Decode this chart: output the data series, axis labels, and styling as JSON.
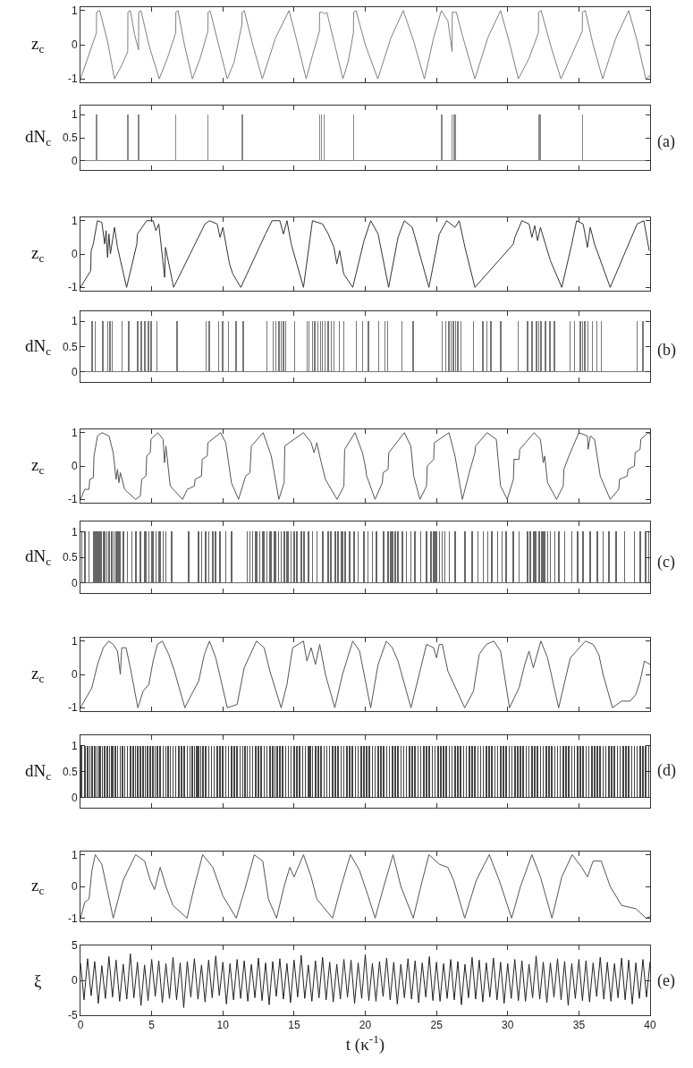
{
  "chart_data": [
    {
      "type": "line",
      "ylabel": "z$_{c}$",
      "annotations": [
        "(a)"
      ],
      "color": "#808080",
      "xlim": [
        0,
        40
      ],
      "xticks": [
        0,
        5,
        10,
        15,
        20,
        25,
        30,
        35,
        40
      ],
      "ylim": [
        -1.1,
        1.1
      ],
      "yticks": [
        -1,
        0,
        1
      ],
      "tick_labels": "y",
      "x": [
        0,
        0.5,
        1.12,
        1.13,
        1.35,
        1.9,
        2.39,
        2.9,
        3.32,
        3.33,
        3.5,
        3.8,
        4.08,
        4.09,
        4.25,
        4.8,
        5.53,
        6.1,
        6.69,
        6.7,
        6.85,
        7.3,
        7.86,
        8.4,
        8.95,
        8.96,
        9.1,
        9.7,
        10.31,
        10.8,
        11.34,
        11.35,
        11.5,
        12.1,
        12.77,
        13.7,
        14.65,
        15.2,
        15.85,
        16.3,
        16.78,
        16.79,
        17.0,
        17.11,
        17.3,
        17.8,
        18.43,
        18.8,
        19.17,
        19.18,
        19.35,
        20.0,
        20.88,
        21.8,
        22.67,
        23.4,
        24.15,
        24.8,
        25.34,
        25.8,
        26.1,
        26.11,
        26.4,
        26.8,
        27.7,
        28.6,
        29.5,
        30.1,
        30.75,
        31.5,
        32.16,
        32.17,
        32.35,
        33.0,
        33.74,
        34.5,
        35.24,
        35.25,
        35.45,
        36.0,
        36.67,
        37.6,
        38.5,
        39.1,
        39.7,
        40
      ],
      "values": [
        -1,
        -0.4,
        0.35,
        0.95,
        1,
        0.1,
        -1,
        -0.6,
        -0.2,
        0.95,
        1,
        0.3,
        -0.15,
        0.95,
        1,
        0,
        -1,
        -0.4,
        0.35,
        0.95,
        1,
        0,
        -1,
        -0.4,
        0.4,
        0.95,
        1,
        0,
        -1,
        -0.5,
        0.6,
        0.95,
        1,
        0,
        -1,
        0.2,
        1,
        0.1,
        -1,
        -0.3,
        0.4,
        0.95,
        0.95,
        0.9,
        0.95,
        0.1,
        -1,
        -0.5,
        0.35,
        0.95,
        1,
        0,
        -1,
        0.2,
        1,
        0.1,
        -1,
        0.2,
        1,
        0.7,
        -0.2,
        0.95,
        0.95,
        0.3,
        -1,
        0.2,
        1,
        0.1,
        -1,
        -0.4,
        0.35,
        0.95,
        1,
        0,
        -1,
        -0.3,
        0.4,
        0.95,
        1,
        0,
        -1,
        0.2,
        1,
        0.1,
        -1,
        -0.9
      ]
    },
    {
      "type": "bar",
      "ylabel": "dN$_{c}$",
      "color": "#888888",
      "xlim": [
        0,
        40
      ],
      "xticks": [
        0,
        5,
        10,
        15,
        20,
        25,
        30,
        35,
        40
      ],
      "ylim": [
        -0.2,
        1.2
      ],
      "yticks": [
        0,
        0.5,
        1
      ],
      "tick_labels": "y",
      "x": [
        1.13,
        3.33,
        4.09,
        6.7,
        8.96,
        11.35,
        16.79,
        16.92,
        17.11,
        19.18,
        25.35,
        26.1,
        26.23,
        26.35,
        32.17,
        32.26,
        35.25
      ],
      "values": [
        1,
        1,
        1,
        1,
        1,
        1,
        1,
        1,
        1,
        1,
        1,
        1,
        1,
        1,
        1,
        1,
        1
      ]
    },
    {
      "type": "line",
      "ylabel": "z$_{c}$",
      "annotations": [
        "(b)"
      ],
      "color": "#333333",
      "xlim": [
        0,
        40
      ],
      "xticks": [
        0,
        5,
        10,
        15,
        20,
        25,
        30,
        35,
        40
      ],
      "ylim": [
        -1.1,
        1.1
      ],
      "yticks": [
        -1,
        0,
        1
      ],
      "tick_labels": "y",
      "x": [
        0,
        0.72,
        0.75,
        0.9,
        1.19,
        1.5,
        1.7,
        1.8,
        1.9,
        2.0,
        2.1,
        2.39,
        2.6,
        3.24,
        3.96,
        4.0,
        4.65,
        5.1,
        5.3,
        5.5,
        5.91,
        5.97,
        6.54,
        8.74,
        9.06,
        9.6,
        9.8,
        10.0,
        10.47,
        10.7,
        11.26,
        12.99,
        13.46,
        14.0,
        14.25,
        14.5,
        14.8,
        15.66,
        16.29,
        17.0,
        17.4,
        17.8,
        18.0,
        18.2,
        18.49,
        19.12,
        19.91,
        20.38,
        20.9,
        21.64,
        22.3,
        22.74,
        23.3,
        24.47,
        25.2,
        25.72,
        26.3,
        26.6,
        27.0,
        27.7,
        30.4,
        30.5,
        31.0,
        31.5,
        31.7,
        31.9,
        32.1,
        32.3,
        33.0,
        33.8,
        34.5,
        34.84,
        35.3,
        35.6,
        35.8,
        36.1,
        37.2,
        39.09,
        39.56,
        39.94
      ],
      "values": [
        -1,
        -0.5,
        0.1,
        0.3,
        1,
        0.95,
        0.3,
        0.7,
        -0.1,
        0.6,
        0,
        0.8,
        0.2,
        -1,
        0.3,
        0.6,
        1,
        1,
        0.7,
        0.9,
        -0.7,
        0.2,
        -1,
        0.9,
        1,
        0.9,
        0.5,
        0.8,
        -0.3,
        -0.6,
        -1,
        0.6,
        1,
        1,
        0.6,
        1,
        0.3,
        -1,
        1,
        0.9,
        0.6,
        0.2,
        -0.3,
        0.1,
        -0.6,
        -1,
        0.4,
        1,
        0.6,
        -1,
        0.5,
        1,
        0.8,
        -1,
        0.6,
        1,
        0.8,
        1,
        0.2,
        -1,
        0.3,
        0.5,
        1,
        0.9,
        0.5,
        0.85,
        0.4,
        0.8,
        -0.2,
        -1,
        0.3,
        1,
        0.9,
        0.2,
        0.8,
        0.3,
        -1,
        0.9,
        1,
        0.1
      ]
    },
    {
      "type": "bar",
      "ylabel": "dN$_{c}$",
      "color": "#777777",
      "xlim": [
        0,
        40
      ],
      "xticks": [
        0,
        5,
        10,
        15,
        20,
        25,
        30,
        35,
        40
      ],
      "ylim": [
        -0.2,
        1.2
      ],
      "yticks": [
        0,
        0.5,
        1
      ],
      "tick_labels": "y",
      "x": [
        0.82,
        1.04,
        1.57,
        1.92,
        2.08,
        2.23,
        2.92,
        3.4,
        4.03,
        4.28,
        4.53,
        4.78,
        4.97,
        5.38,
        6.79,
        8.81,
        9.06,
        9.69,
        10.0,
        10.38,
        10.94,
        11.42,
        13.08,
        13.52,
        13.71,
        13.93,
        14.09,
        14.25,
        14.4,
        15.03,
        15.91,
        16.04,
        16.29,
        16.45,
        16.67,
        16.86,
        16.98,
        17.17,
        17.39,
        17.61,
        17.8,
        18.18,
        18.49,
        19.37,
        19.81,
        20.22,
        20.94,
        21.38,
        21.57,
        22.58,
        23.36,
        25.41,
        25.66,
        25.88,
        26.04,
        26.19,
        26.35,
        26.51,
        26.73,
        27.61,
        28.24,
        28.55,
        28.81,
        29.5,
        30.75,
        31.38,
        31.7,
        32.01,
        32.17,
        32.33,
        32.64,
        32.96,
        33.27,
        34.37,
        34.69,
        35.09,
        35.25,
        35.41,
        35.63,
        35.94,
        36.26,
        36.57,
        39.09,
        39.5
      ],
      "values": [
        1,
        1,
        1,
        1,
        1,
        1,
        1,
        1,
        1,
        1,
        1,
        1,
        1,
        1,
        1,
        1,
        1,
        1,
        1,
        1,
        1,
        1,
        1,
        1,
        1,
        1,
        1,
        1,
        1,
        1,
        1,
        1,
        1,
        1,
        1,
        1,
        1,
        1,
        1,
        1,
        1,
        1,
        1,
        1,
        1,
        1,
        1,
        1,
        1,
        1,
        1,
        1,
        1,
        1,
        1,
        1,
        1,
        1,
        1,
        1,
        1,
        1,
        1,
        1,
        1,
        1,
        1,
        1,
        1,
        1,
        1,
        1,
        1,
        1,
        1,
        1,
        1,
        1,
        1,
        1,
        1,
        1,
        1,
        1
      ]
    },
    {
      "type": "line",
      "ylabel": "z$_{c}$",
      "annotations": [
        "(c)"
      ],
      "color": "#555555",
      "xlim": [
        0,
        40
      ],
      "xticks": [
        0,
        5,
        10,
        15,
        20,
        25,
        30,
        35,
        40
      ],
      "ylim": [
        -1.1,
        1.1
      ],
      "yticks": [
        -1,
        0,
        1
      ],
      "tick_labels": "y",
      "x": [
        0,
        0.3,
        0.6,
        0.65,
        0.9,
        0.95,
        1.2,
        1.51,
        2.0,
        2.3,
        2.5,
        2.6,
        2.7,
        2.8,
        3.1,
        3.87,
        4.2,
        4.3,
        4.6,
        4.65,
        4.9,
        4.95,
        5.44,
        5.8,
        5.9,
        6.0,
        6.3,
        7.17,
        7.5,
        8.0,
        8.05,
        8.5,
        8.55,
        8.9,
        8.95,
        9.84,
        10.2,
        10.6,
        11.1,
        11.6,
        11.9,
        12.0,
        12.83,
        13.4,
        13.93,
        14.3,
        14.35,
        15.0,
        15.66,
        16.2,
        16.4,
        16.6,
        16.8,
        17.2,
        18.02,
        18.5,
        18.55,
        19.28,
        19.8,
        20.0,
        20.1,
        20.69,
        21.2,
        21.25,
        21.6,
        21.65,
        22.74,
        23.2,
        23.4,
        23.84,
        24.3,
        24.35,
        24.8,
        24.85,
        25.88,
        26.3,
        26.82,
        27.3,
        27.7,
        27.75,
        28.55,
        29.2,
        29.5,
        29.97,
        30.4,
        30.45,
        30.8,
        30.85,
        31.86,
        32.3,
        32.5,
        32.6,
        32.8,
        33.43,
        33.9,
        33.95,
        34.3,
        35.0,
        35.6,
        35.65,
        35.8,
        36.1,
        36.5,
        37.2,
        37.8,
        37.85,
        38.4,
        38.45,
        38.9,
        38.95,
        39.3,
        39.35,
        39.87,
        40
      ],
      "values": [
        -1,
        -0.7,
        -0.7,
        -0.4,
        -0.35,
        0.3,
        0.9,
        1,
        0.9,
        0.4,
        -0.4,
        -0.1,
        -0.5,
        -0.2,
        -0.7,
        -1,
        -0.9,
        -0.4,
        -0.3,
        0.3,
        0.4,
        0.8,
        1,
        0.8,
        0.1,
        0.6,
        -0.6,
        -1,
        -0.7,
        -0.6,
        -0.4,
        -0.3,
        0.2,
        0.3,
        0.7,
        1,
        0.7,
        -0.5,
        -1,
        -0.3,
        -0.2,
        0.6,
        1,
        0.3,
        -1,
        -0.5,
        0.6,
        0.8,
        1,
        0.7,
        0.4,
        0.7,
        0.3,
        -0.4,
        -1,
        -0.6,
        0.5,
        1,
        0.4,
        0,
        -0.3,
        -1,
        -0.5,
        -0.2,
        -0.1,
        0.4,
        1,
        0.6,
        -0.3,
        -1,
        -0.6,
        0,
        0.2,
        0.7,
        1,
        0.3,
        -1,
        -0.2,
        0.4,
        0.6,
        1,
        0.8,
        -0.6,
        -1,
        -0.4,
        0.2,
        0.2,
        0.5,
        1,
        0.8,
        0.1,
        0.3,
        -0.5,
        -1,
        -0.6,
        -0.1,
        0.3,
        1,
        0.9,
        0.5,
        0.9,
        0.8,
        -0.3,
        -1,
        -0.7,
        -0.4,
        -0.3,
        -0.1,
        0,
        0.4,
        0.5,
        0.8,
        1,
        0.95
      ]
    },
    {
      "type": "bar",
      "ylabel": "dN$_{c}$",
      "color": "#666666",
      "xlim": [
        0,
        40
      ],
      "xticks": [
        0,
        5,
        10,
        15,
        20,
        25,
        30,
        35,
        40
      ],
      "ylim": [
        -0.2,
        1.2
      ],
      "yticks": [
        0,
        0.5,
        1
      ],
      "tick_labels": "y",
      "x": [
        0.1,
        0.3,
        0.6,
        0.9,
        1.0,
        1.1,
        1.2,
        1.3,
        1.45,
        1.6,
        1.7,
        1.85,
        2.0,
        2.2,
        2.35,
        2.5,
        2.6,
        2.7,
        2.8,
        3.0,
        3.3,
        3.6,
        3.9,
        4.2,
        4.5,
        4.6,
        4.8,
        5.0,
        5.1,
        5.3,
        5.5,
        5.6,
        5.8,
        6.0,
        6.4,
        7.6,
        8.3,
        8.5,
        8.8,
        9.0,
        9.3,
        9.5,
        9.8,
        10.2,
        10.6,
        11.7,
        11.9,
        12.1,
        12.3,
        12.4,
        12.6,
        12.8,
        12.9,
        13.1,
        13.3,
        13.4,
        13.6,
        13.7,
        13.9,
        14.1,
        14.3,
        14.5,
        14.6,
        14.8,
        15.0,
        15.2,
        15.5,
        15.7,
        16.0,
        16.3,
        16.6,
        17.0,
        17.4,
        17.6,
        17.9,
        18.1,
        18.3,
        18.4,
        18.6,
        18.9,
        19.2,
        19.5,
        19.9,
        20.2,
        20.5,
        20.8,
        21.3,
        21.6,
        21.8,
        21.9,
        22.1,
        22.3,
        22.6,
        22.9,
        23.2,
        23.5,
        23.9,
        24.3,
        24.6,
        24.8,
        24.9,
        25.0,
        25.2,
        25.4,
        25.6,
        25.9,
        26.3,
        27.0,
        27.5,
        27.9,
        28.3,
        28.6,
        28.9,
        29.3,
        29.6,
        29.9,
        30.4,
        30.8,
        31.4,
        31.6,
        31.8,
        31.9,
        32.0,
        32.2,
        32.4,
        32.5,
        32.6,
        32.8,
        33.0,
        33.3,
        33.6,
        34.0,
        34.5,
        34.9,
        35.3,
        35.8,
        36.3,
        36.7,
        37.1,
        37.6,
        38.2,
        38.9,
        39.3,
        39.7,
        39.9
      ],
      "values": [
        1,
        1,
        1,
        1,
        1,
        1,
        1,
        1,
        1,
        1,
        1,
        1,
        1,
        1,
        1,
        1,
        1,
        1,
        1,
        1,
        1,
        1,
        1,
        1,
        1,
        1,
        1,
        1,
        1,
        1,
        1,
        1,
        1,
        1,
        1,
        1,
        1,
        1,
        1,
        1,
        1,
        1,
        1,
        1,
        1,
        1,
        1,
        1,
        1,
        1,
        1,
        1,
        1,
        1,
        1,
        1,
        1,
        1,
        1,
        1,
        1,
        1,
        1,
        1,
        1,
        1,
        1,
        1,
        1,
        1,
        1,
        1,
        1,
        1,
        1,
        1,
        1,
        1,
        1,
        1,
        1,
        1,
        1,
        1,
        1,
        1,
        1,
        1,
        1,
        1,
        1,
        1,
        1,
        1,
        1,
        1,
        1,
        1,
        1,
        1,
        1,
        1,
        1,
        1,
        1,
        1,
        1,
        1,
        1,
        1,
        1,
        1,
        1,
        1,
        1,
        1,
        1,
        1,
        1,
        1,
        1,
        1,
        1,
        1,
        1,
        1,
        1,
        1,
        1,
        1,
        1,
        1,
        1,
        1,
        1,
        1,
        1,
        1,
        1,
        1,
        1,
        1,
        1,
        1,
        1
      ]
    },
    {
      "type": "line",
      "ylabel": "z$_{c}$",
      "annotations": [
        "(d)"
      ],
      "color": "#555555",
      "xlim": [
        0,
        40
      ],
      "xticks": [
        0,
        5,
        10,
        15,
        20,
        25,
        30,
        35,
        40
      ],
      "ylim": [
        -1.1,
        1.1
      ],
      "yticks": [
        -1,
        0,
        1
      ],
      "tick_labels": "y",
      "x": [
        0,
        0.4,
        0.8,
        1.2,
        1.6,
        1.98,
        2.3,
        2.6,
        2.8,
        2.9,
        3.2,
        3.5,
        4.03,
        4.4,
        4.8,
        5.1,
        5.4,
        5.75,
        6.2,
        6.6,
        7.33,
        7.8,
        8.3,
        8.7,
        9.06,
        9.5,
        10.31,
        11.0,
        11.5,
        12.36,
        12.9,
        13.3,
        14.09,
        14.5,
        14.9,
        15.66,
        15.9,
        16.2,
        16.5,
        16.8,
        17.2,
        17.86,
        18.4,
        19.12,
        19.6,
        20.38,
        20.9,
        21.48,
        21.9,
        22.3,
        23.21,
        23.9,
        24.3,
        24.8,
        25.0,
        25.2,
        25.41,
        25.8,
        26.98,
        27.6,
        28.0,
        28.5,
        29.03,
        29.5,
        30.13,
        30.8,
        31.2,
        31.5,
        31.8,
        32.33,
        32.8,
        33.58,
        34.4,
        35.47,
        36.0,
        36.4,
        36.7,
        37.36,
        38.0,
        38.6,
        39.0,
        39.3,
        39.6,
        40
      ],
      "values": [
        -1,
        -0.7,
        -0.4,
        0.3,
        0.8,
        1,
        0.9,
        0.7,
        0,
        0.8,
        0.8,
        0.2,
        -1,
        -0.5,
        -0.3,
        0.4,
        0.9,
        1,
        0.6,
        0.1,
        -1,
        -0.6,
        -0.2,
        0.6,
        1,
        0.5,
        -1,
        -0.9,
        0.2,
        1,
        0.8,
        0.1,
        -1,
        -0.3,
        0.8,
        1,
        0.4,
        0.8,
        0.3,
        0.9,
        0,
        -1,
        0,
        1,
        0.7,
        -1,
        0.3,
        1,
        0.8,
        0.4,
        -1,
        0.2,
        0.9,
        0.8,
        0.5,
        0.9,
        0.9,
        0.1,
        -1,
        -0.5,
        0.6,
        0.9,
        1,
        0.7,
        -1,
        -0.4,
        0.3,
        0.7,
        0.2,
        1,
        0.5,
        -1,
        0.5,
        1,
        0.9,
        0.6,
        0,
        -1,
        -0.8,
        -0.8,
        -0.6,
        -0.2,
        0.4,
        0.3
      ]
    },
    {
      "type": "bar",
      "ylabel": "dN$_{c}$",
      "color": "#444444",
      "xlim": [
        0,
        40
      ],
      "xticks": [
        0,
        5,
        10,
        15,
        20,
        25,
        30,
        35,
        40
      ],
      "ylim": [
        -0.2,
        1.2
      ],
      "yticks": [
        0,
        0.5,
        1
      ],
      "tick_labels": "y",
      "x": [
        0.05,
        0.3,
        0.5,
        0.65,
        0.8,
        1.0,
        1.15,
        1.3,
        1.4,
        1.55,
        1.7,
        1.9,
        2.05,
        2.2,
        2.3,
        2.45,
        2.6,
        2.8,
        2.95,
        3.1,
        3.3,
        3.5,
        3.7,
        3.85,
        4.0,
        4.2,
        4.4,
        4.55,
        4.7,
        4.9,
        5.1,
        5.25,
        5.4,
        5.6,
        5.8,
        6.0,
        6.15,
        6.3,
        6.5,
        6.7,
        6.9,
        7.1,
        7.3,
        7.5,
        7.7,
        7.85,
        8.0,
        8.15,
        8.3,
        8.45,
        8.6,
        8.8,
        9.0,
        9.2,
        9.4,
        9.6,
        9.8,
        10.0,
        10.2,
        10.4,
        10.6,
        10.8,
        11.0,
        11.2,
        11.4,
        11.55,
        11.7,
        11.9,
        12.1,
        12.3,
        12.5,
        12.7,
        12.9,
        13.1,
        13.3,
        13.5,
        13.65,
        13.8,
        14.0,
        14.2,
        14.4,
        14.6,
        14.8,
        15.0,
        15.2,
        15.4,
        15.6,
        15.8,
        16.0,
        16.15,
        16.3,
        16.5,
        16.7,
        16.9,
        17.1,
        17.3,
        17.5,
        17.7,
        17.9,
        18.1,
        18.3,
        18.5,
        18.7,
        18.9,
        19.1,
        19.3,
        19.5,
        19.7,
        19.9,
        20.1,
        20.3,
        20.5,
        20.7,
        20.9,
        21.1,
        21.3,
        21.5,
        21.7,
        21.9,
        22.1,
        22.3,
        22.5,
        22.7,
        22.9,
        23.1,
        23.3,
        23.5,
        23.7,
        23.9,
        24.1,
        24.3,
        24.5,
        24.7,
        24.9,
        25.1,
        25.3,
        25.5,
        25.7,
        25.9,
        26.1,
        26.3,
        26.5,
        26.7,
        26.9,
        27.1,
        27.3,
        27.5,
        27.7,
        27.9,
        28.1,
        28.3,
        28.5,
        28.7,
        28.9,
        29.1,
        29.3,
        29.5,
        29.7,
        29.9,
        30.1,
        30.3,
        30.5,
        30.7,
        30.9,
        31.1,
        31.3,
        31.5,
        31.7,
        31.9,
        32.1,
        32.3,
        32.5,
        32.7,
        32.9,
        33.1,
        33.3,
        33.5,
        33.7,
        33.9,
        34.1,
        34.3,
        34.5,
        34.7,
        34.9,
        35.1,
        35.3,
        35.5,
        35.7,
        35.9,
        36.1,
        36.3,
        36.5,
        36.7,
        36.9,
        37.1,
        37.3,
        37.5,
        37.7,
        37.9,
        38.1,
        38.3,
        38.5,
        38.7,
        38.9,
        39.1,
        39.3,
        39.5,
        39.7,
        39.9
      ],
      "values": [
        1,
        1,
        1,
        1,
        1,
        1,
        1,
        1,
        1,
        1,
        1,
        1,
        1,
        1,
        1,
        1,
        1,
        1,
        1,
        1,
        1,
        1,
        1,
        1,
        1,
        1,
        1,
        1,
        1,
        1,
        1,
        1,
        1,
        1,
        1,
        1,
        1,
        1,
        1,
        1,
        1,
        1,
        1,
        1,
        1,
        1,
        1,
        1,
        1,
        1,
        1,
        1,
        1,
        1,
        1,
        1,
        1,
        1,
        1,
        1,
        1,
        1,
        1,
        1,
        1,
        1,
        1,
        1,
        1,
        1,
        1,
        1,
        1,
        1,
        1,
        1,
        1,
        1,
        1,
        1,
        1,
        1,
        1,
        1,
        1,
        1,
        1,
        1,
        1,
        1,
        1,
        1,
        1,
        1,
        1,
        1,
        1,
        1,
        1,
        1,
        1,
        1,
        1,
        1,
        1,
        1,
        1,
        1,
        1,
        1,
        1,
        1,
        1,
        1,
        1,
        1,
        1,
        1,
        1,
        1,
        1,
        1,
        1,
        1,
        1,
        1,
        1,
        1,
        1,
        1,
        1,
        1,
        1,
        1,
        1,
        1,
        1,
        1,
        1,
        1,
        1,
        1,
        1,
        1,
        1,
        1,
        1,
        1,
        1,
        1,
        1,
        1,
        1,
        1,
        1,
        1,
        1,
        1,
        1,
        1,
        1,
        1,
        1,
        1,
        1,
        1,
        1,
        1,
        1,
        1,
        1,
        1,
        1,
        1,
        1,
        1,
        1,
        1,
        1,
        1,
        1,
        1,
        1,
        1,
        1,
        1,
        1,
        1,
        1,
        1,
        1,
        1,
        1,
        1,
        1,
        1,
        1,
        1,
        1,
        1,
        1,
        1,
        1,
        1,
        1,
        1,
        1,
        1,
        1
      ]
    },
    {
      "type": "line",
      "ylabel": "z$_{c}$",
      "annotations": [
        "(e)"
      ],
      "color": "#555555",
      "xlim": [
        0,
        40
      ],
      "xticks": [
        0,
        5,
        10,
        15,
        20,
        25,
        30,
        35,
        40
      ],
      "ylim": [
        -1.1,
        1.1
      ],
      "yticks": [
        -1,
        0,
        1
      ],
      "tick_labels": "y",
      "x": [
        0,
        0.3,
        0.6,
        0.8,
        1.04,
        1.5,
        2.3,
        3.0,
        3.87,
        4.5,
        4.9,
        5.2,
        5.6,
        6.0,
        6.5,
        7.48,
        8.0,
        8.58,
        9.3,
        10.0,
        10.94,
        11.6,
        12.2,
        12.8,
        13.2,
        13.77,
        14.3,
        14.7,
        15.0,
        15.66,
        16.2,
        16.6,
        17.7,
        18.3,
        18.96,
        19.6,
        20.2,
        20.69,
        21.3,
        21.95,
        22.5,
        23.37,
        23.9,
        24.47,
        25.2,
        25.8,
        26.2,
        26.98,
        27.8,
        28.71,
        29.4,
        30.28,
        30.9,
        31.7,
        32.3,
        33.11,
        33.8,
        34.53,
        35.2,
        35.6,
        36.0,
        36.57,
        37.2,
        38.0,
        39.0,
        39.72,
        40
      ],
      "values": [
        -1,
        -0.5,
        -0.4,
        0.5,
        1,
        0.7,
        -1,
        0.2,
        1,
        0.8,
        0.2,
        -0.1,
        0.6,
        0,
        -0.6,
        -1,
        0,
        1,
        0.6,
        -0.3,
        -1,
        0,
        1,
        0.8,
        -0.4,
        -1,
        0,
        0.6,
        0.3,
        1,
        0.3,
        -0.4,
        -1,
        0,
        1,
        0.5,
        -0.3,
        -1,
        0,
        1,
        0,
        -1,
        0,
        1,
        0.7,
        0.6,
        0.2,
        -1,
        0.2,
        1,
        0.2,
        -1,
        0,
        1,
        0.3,
        -1,
        0.3,
        1,
        0.6,
        0.3,
        0.8,
        0.8,
        0,
        -0.6,
        -0.7,
        -1,
        -0.95
      ]
    },
    {
      "type": "line",
      "ylabel": "ξ",
      "xlabel": "t (κ$^{-1}$)",
      "color": "#222222",
      "xlim": [
        0,
        40
      ],
      "xticks": [
        0,
        5,
        10,
        15,
        20,
        25,
        30,
        35,
        40
      ],
      "ylim": [
        -5,
        5
      ],
      "yticks": [
        -5,
        0,
        5
      ],
      "x": [
        0,
        0.25,
        0.5,
        0.75,
        1,
        1.25,
        1.5,
        1.75,
        2,
        2.25,
        2.5,
        2.75,
        3,
        3.25,
        3.5,
        3.75,
        4,
        4.25,
        4.5,
        4.75,
        5,
        5.25,
        5.5,
        5.75,
        6,
        6.25,
        6.5,
        6.75,
        7,
        7.25,
        7.5,
        7.75,
        8,
        8.25,
        8.5,
        8.75,
        9,
        9.25,
        9.5,
        9.75,
        10,
        10.25,
        10.5,
        10.75,
        11,
        11.25,
        11.5,
        11.75,
        12,
        12.25,
        12.5,
        12.75,
        13,
        13.25,
        13.5,
        13.75,
        14,
        14.25,
        14.5,
        14.75,
        15,
        15.25,
        15.5,
        15.75,
        16,
        16.25,
        16.5,
        16.75,
        17,
        17.25,
        17.5,
        17.75,
        18,
        18.25,
        18.5,
        18.75,
        19,
        19.25,
        19.5,
        19.75,
        20,
        20.25,
        20.5,
        20.75,
        21,
        21.25,
        21.5,
        21.75,
        22,
        22.25,
        22.5,
        22.75,
        23,
        23.25,
        23.5,
        23.75,
        24,
        24.25,
        24.5,
        24.75,
        25,
        25.25,
        25.5,
        25.75,
        26,
        26.25,
        26.5,
        26.75,
        27,
        27.25,
        27.5,
        27.75,
        28,
        28.25,
        28.5,
        28.75,
        29,
        29.25,
        29.5,
        29.75,
        30,
        30.25,
        30.5,
        30.75,
        31,
        31.25,
        31.5,
        31.75,
        32,
        32.25,
        32.5,
        32.75,
        33,
        33.25,
        33.5,
        33.75,
        34,
        34.25,
        34.5,
        34.75,
        35,
        35.25,
        35.5,
        35.75,
        36,
        36.25,
        36.5,
        36.75,
        37,
        37.25,
        37.5,
        37.75,
        38,
        38.25,
        38.5,
        38.75,
        39,
        39.25,
        39.5,
        39.75,
        40
      ],
      "values": [
        2.5,
        -2.8,
        3.1,
        -2.2,
        2.7,
        -3.3,
        2.1,
        -2.6,
        3.4,
        -2.4,
        2.9,
        -3.0,
        2.3,
        -2.7,
        3.8,
        -2.5,
        2.6,
        -3.6,
        2.2,
        -2.9,
        3.0,
        -2.3,
        2.8,
        -3.2,
        2.4,
        -2.6,
        3.3,
        -2.8,
        2.5,
        -3.9,
        2.7,
        -2.4,
        3.1,
        -2.7,
        2.2,
        -3.1,
        2.9,
        -2.5,
        3.5,
        -2.2,
        2.6,
        -3.4,
        2.4,
        -2.8,
        3.0,
        -2.6,
        2.8,
        -3.0,
        2.3,
        -2.5,
        3.2,
        -2.9,
        2.5,
        -3.5,
        2.7,
        -2.3,
        3.1,
        -2.7,
        2.4,
        -3.2,
        2.9,
        -2.4,
        3.6,
        -2.6,
        2.2,
        -3.0,
        2.8,
        -2.5,
        3.3,
        -2.8,
        2.6,
        -3.1,
        2.3,
        -2.7,
        3.0,
        -2.4,
        2.9,
        -3.3,
        2.5,
        -2.6,
        3.7,
        -2.9,
        2.4,
        -3.0,
        2.7,
        -2.3,
        3.2,
        -2.8,
        2.6,
        -3.4,
        2.3,
        -2.5,
        3.1,
        -2.7,
        2.8,
        -3.2,
        2.5,
        -2.4,
        3.4,
        -2.9,
        2.6,
        -3.0,
        2.4,
        -2.6,
        3.0,
        -2.8,
        2.7,
        -3.5,
        2.3,
        -2.5,
        3.3,
        -2.7,
        2.9,
        -3.1,
        2.5,
        -2.4,
        3.2,
        -2.8,
        2.6,
        -3.3,
        2.4,
        -2.6,
        3.0,
        -2.9,
        2.8,
        -3.0,
        2.3,
        -2.5,
        3.5,
        -2.7,
        2.6,
        -3.2,
        2.5,
        -2.4,
        3.1,
        -2.8,
        2.7,
        -3.6,
        2.4,
        -2.6,
        3.0,
        -2.9,
        2.8,
        -3.1,
        2.5,
        -2.3,
        3.3,
        -2.7,
        2.6,
        -3.0,
        2.4,
        -2.5,
        3.2,
        -2.8,
        2.9,
        -3.4,
        2.5,
        -2.6,
        3.0,
        -2.4,
        2.7
      ]
    }
  ]
}
